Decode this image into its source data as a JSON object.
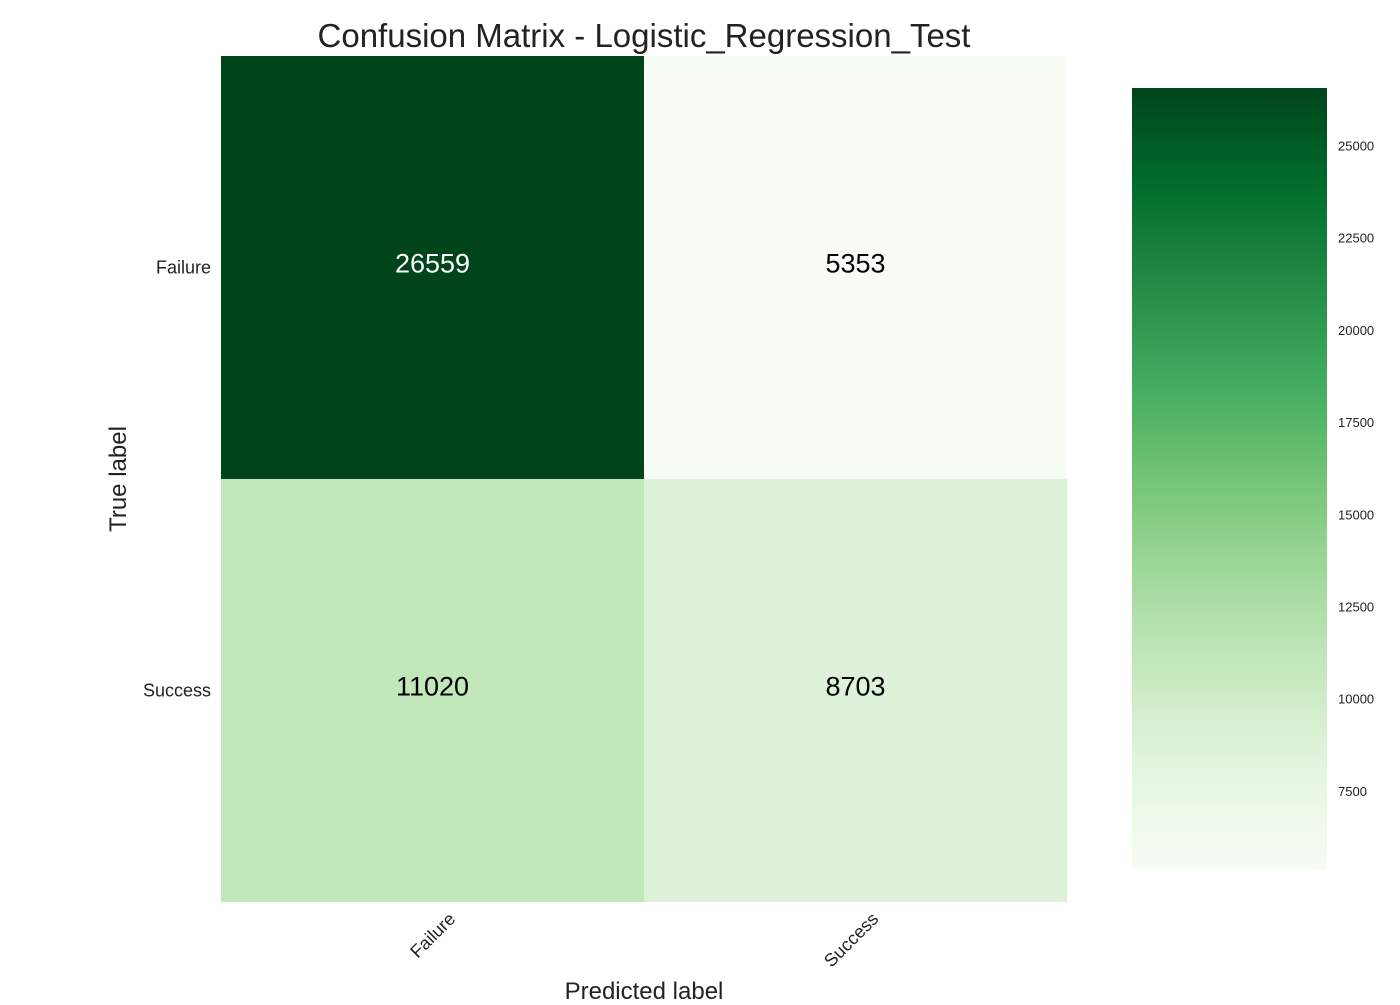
{
  "chart_data": {
    "type": "heatmap",
    "title": "Confusion Matrix - Logistic_Regression_Test",
    "xlabel": "Predicted label",
    "ylabel": "True label",
    "x_categories": [
      "Failure",
      "Success"
    ],
    "y_categories": [
      "Failure",
      "Success"
    ],
    "values": [
      [
        26559,
        5353
      ],
      [
        11020,
        8703
      ]
    ],
    "colormap": "Greens",
    "colorbar": {
      "vmin": 5353,
      "vmax": 26559,
      "ticks": [
        7500,
        10000,
        12500,
        15000,
        17500,
        20000,
        22500,
        25000
      ]
    },
    "grid": false
  }
}
